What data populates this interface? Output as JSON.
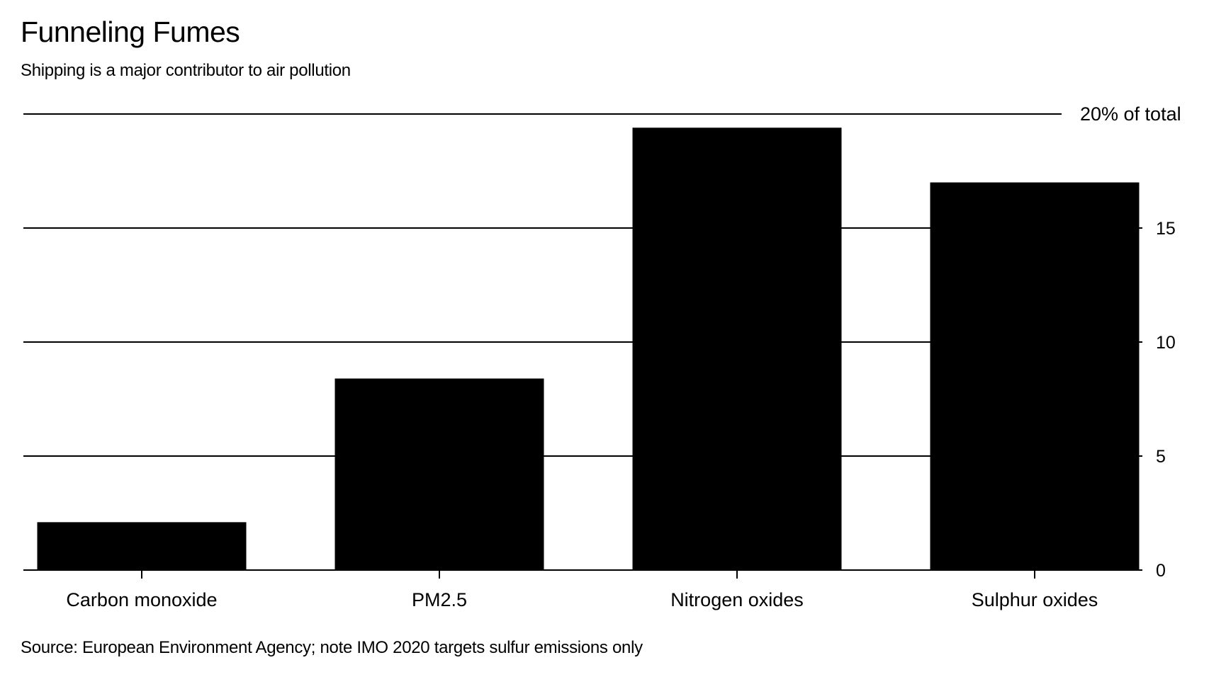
{
  "chart_data": {
    "type": "bar",
    "title": "Funneling Fumes",
    "subtitle": "Shipping is a major contributor to air pollution",
    "categories": [
      "Carbon monoxide",
      "PM2.5",
      "Nitrogen oxides",
      "Sulphur oxides"
    ],
    "values": [
      2.1,
      8.4,
      19.4,
      17.0
    ],
    "y_ticks": [
      {
        "value": 0,
        "label": "0"
      },
      {
        "value": 5,
        "label": "5"
      },
      {
        "value": 10,
        "label": "10"
      },
      {
        "value": 15,
        "label": "15"
      },
      {
        "value": 20,
        "label": "20% of total"
      }
    ],
    "ylim": [
      0,
      20
    ],
    "ylabel": "",
    "xlabel": "",
    "grid": true,
    "y_axis_side": "right",
    "bar_color": "#000000",
    "source": "Source: European Environment Agency; note IMO 2020 targets sulfur emissions only"
  }
}
